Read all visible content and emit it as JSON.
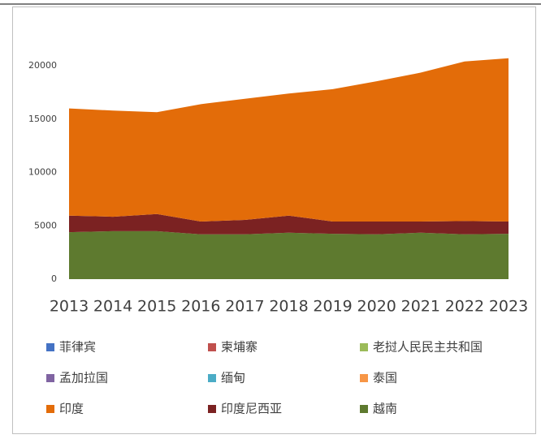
{
  "chart_data": {
    "type": "stacked_area",
    "categories": [
      "2013",
      "2014",
      "2015",
      "2016",
      "2017",
      "2018",
      "2019",
      "2020",
      "2021",
      "2022",
      "2023"
    ],
    "series": [
      {
        "name": "菲律宾",
        "color": "#4472c4",
        "values": [
          0,
          0,
          0,
          0,
          0,
          0,
          0,
          0,
          0,
          0,
          0
        ]
      },
      {
        "name": "柬埔寨",
        "color": "#c0504d",
        "values": [
          0,
          0,
          0,
          0,
          0,
          0,
          0,
          0,
          0,
          0,
          0
        ]
      },
      {
        "name": "老挝人民民主共和国",
        "color": "#9bbb59",
        "values": [
          0,
          0,
          0,
          0,
          0,
          0,
          0,
          0,
          0,
          0,
          0
        ]
      },
      {
        "name": "孟加拉国",
        "color": "#8064a2",
        "values": [
          0,
          0,
          0,
          0,
          0,
          0,
          0,
          0,
          0,
          0,
          0
        ]
      },
      {
        "name": "缅甸",
        "color": "#4bacc6",
        "values": [
          0,
          0,
          0,
          0,
          0,
          0,
          0,
          0,
          0,
          0,
          0
        ]
      },
      {
        "name": "泰国",
        "color": "#f79646",
        "values": [
          0,
          0,
          0,
          0,
          0,
          0,
          0,
          0,
          0,
          0,
          0
        ]
      },
      {
        "name": "印度",
        "color": "#e36c09",
        "values": [
          10050,
          9950,
          9550,
          11000,
          11350,
          11450,
          12400,
          13150,
          13950,
          14950,
          15300
        ]
      },
      {
        "name": "印度尼西亚",
        "color": "#7b2222",
        "values": [
          1550,
          1350,
          1600,
          1200,
          1350,
          1600,
          1150,
          1200,
          1050,
          1250,
          1150
        ]
      },
      {
        "name": "越南",
        "color": "#5e7a2f",
        "values": [
          4400,
          4500,
          4500,
          4200,
          4200,
          4350,
          4250,
          4200,
          4350,
          4200,
          4250
        ]
      }
    ],
    "ylim": [
      0,
      20000
    ],
    "yticks": [
      0,
      5000,
      10000,
      15000,
      20000
    ]
  }
}
